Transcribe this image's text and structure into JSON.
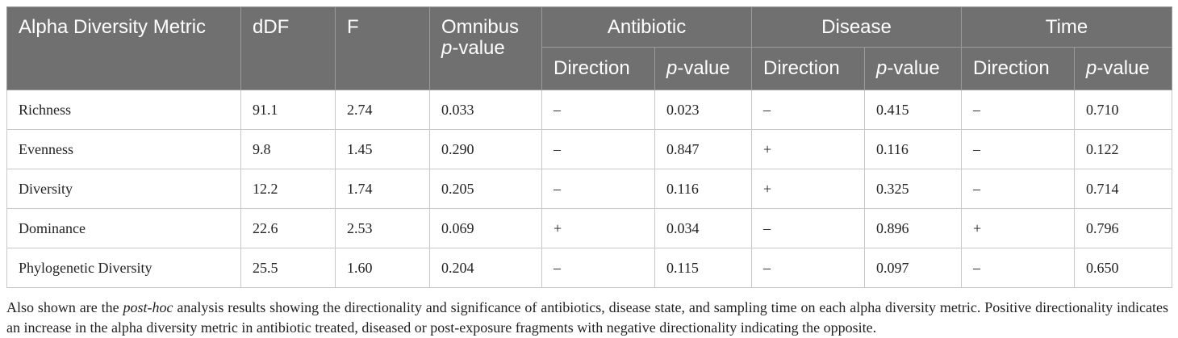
{
  "table": {
    "headers": {
      "metric": "Alpha Diversity Metric",
      "ddf": "dDF",
      "f": "F",
      "omnibus_prefix": "Omnibus",
      "omnibus_p": "p",
      "omnibus_suffix": "-value",
      "groups": [
        "Antibiotic",
        "Disease",
        "Time"
      ],
      "direction": "Direction",
      "p_italic": "p",
      "p_suffix": "-value"
    },
    "rows": [
      {
        "metric": "Richness",
        "ddf": "91.1",
        "f": "2.74",
        "omnibus": "0.033",
        "ab_dir": "–",
        "ab_p": "0.023",
        "dis_dir": "–",
        "dis_p": "0.415",
        "time_dir": "–",
        "time_p": "0.710"
      },
      {
        "metric": "Evenness",
        "ddf": "9.8",
        "f": "1.45",
        "omnibus": "0.290",
        "ab_dir": "–",
        "ab_p": "0.847",
        "dis_dir": "+",
        "dis_p": "0.116",
        "time_dir": "–",
        "time_p": "0.122"
      },
      {
        "metric": "Diversity",
        "ddf": "12.2",
        "f": "1.74",
        "omnibus": "0.205",
        "ab_dir": "–",
        "ab_p": "0.116",
        "dis_dir": "+",
        "dis_p": "0.325",
        "time_dir": "–",
        "time_p": "0.714"
      },
      {
        "metric": "Dominance",
        "ddf": "22.6",
        "f": "2.53",
        "omnibus": "0.069",
        "ab_dir": "+",
        "ab_p": "0.034",
        "dis_dir": "–",
        "dis_p": "0.896",
        "time_dir": "+",
        "time_p": "0.796"
      },
      {
        "metric": "Phylogenetic Diversity",
        "ddf": "25.5",
        "f": "1.60",
        "omnibus": "0.204",
        "ab_dir": "–",
        "ab_p": "0.115",
        "dis_dir": "–",
        "dis_p": "0.097",
        "time_dir": "–",
        "time_p": "0.650"
      }
    ]
  },
  "caption": {
    "part1": "Also shown are the ",
    "italic": "post-hoc",
    "part2": " analysis results showing the directionality and significance of antibiotics, disease state, and sampling time on each alpha diversity metric. Positive directionality indicates an increase in the alpha diversity metric in antibiotic treated, diseased or post-exposure fragments with negative directionality indicating the opposite."
  }
}
